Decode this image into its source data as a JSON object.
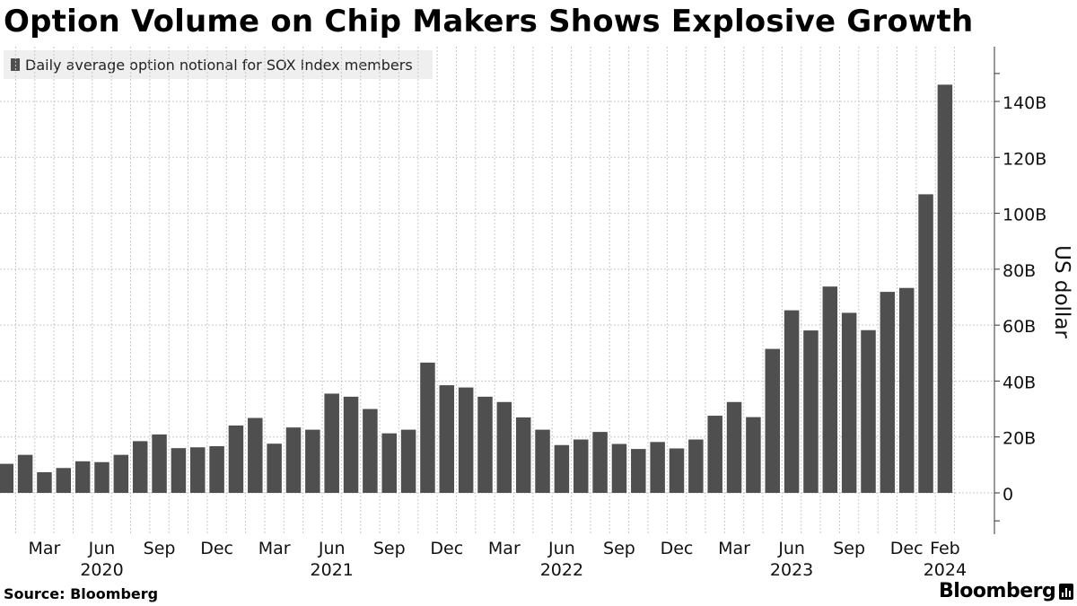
{
  "title": "Option Volume on Chip Makers Shows Explosive Growth",
  "legend": {
    "label": "Daily average option notional for SOX Index members",
    "color": "#4f4f4f"
  },
  "footer": {
    "source": "Source:  Bloomberg",
    "brand": "Bloomberg",
    "brand_icon": "bloomberg-terminal-icon"
  },
  "chart_data": {
    "type": "bar",
    "ylabel": "US dollar",
    "ylim": [
      -15,
      158
    ],
    "yticks": [
      0,
      20,
      40,
      60,
      80,
      100,
      120,
      140
    ],
    "ytick_labels": [
      "0",
      "20B",
      "40B",
      "60B",
      "80B",
      "100B",
      "120B",
      "140B"
    ],
    "grid": true,
    "legend_position": "top-left",
    "bar_color": "#4f4f4f",
    "series": [
      {
        "name": "Daily average option notional for SOX Index members",
        "categories": [
          "2020-01",
          "2020-02",
          "2020-03",
          "2020-04",
          "2020-05",
          "2020-06",
          "2020-07",
          "2020-08",
          "2020-09",
          "2020-10",
          "2020-11",
          "2020-12",
          "2021-01",
          "2021-02",
          "2021-03",
          "2021-04",
          "2021-05",
          "2021-06",
          "2021-07",
          "2021-08",
          "2021-09",
          "2021-10",
          "2021-11",
          "2021-12",
          "2022-01",
          "2022-02",
          "2022-03",
          "2022-04",
          "2022-05",
          "2022-06",
          "2022-07",
          "2022-08",
          "2022-09",
          "2022-10",
          "2022-11",
          "2022-12",
          "2023-01",
          "2023-02",
          "2023-03",
          "2023-04",
          "2023-05",
          "2023-06",
          "2023-07",
          "2023-08",
          "2023-09",
          "2023-10",
          "2023-11",
          "2023-12",
          "2024-01",
          "2024-02"
        ],
        "values": [
          10.4,
          13.6,
          7.4,
          8.9,
          11.3,
          11.0,
          13.6,
          18.5,
          20.9,
          16.0,
          16.3,
          16.7,
          24.1,
          26.8,
          17.6,
          23.4,
          22.6,
          35.5,
          34.4,
          30.0,
          21.3,
          22.6,
          46.6,
          38.5,
          37.7,
          34.4,
          32.5,
          27.0,
          22.6,
          17.1,
          19.1,
          21.8,
          17.5,
          15.7,
          18.2,
          15.9,
          19.1,
          27.6,
          32.5,
          27.1,
          51.5,
          65.3,
          58.1,
          73.8,
          64.4,
          58.2,
          71.9,
          73.3,
          106.8,
          146.0
        ]
      }
    ],
    "x_month_labels": [
      {
        "index": 2,
        "label": "Mar"
      },
      {
        "index": 5,
        "label": "Jun"
      },
      {
        "index": 8,
        "label": "Sep"
      },
      {
        "index": 11,
        "label": "Dec"
      },
      {
        "index": 14,
        "label": "Mar"
      },
      {
        "index": 17,
        "label": "Jun"
      },
      {
        "index": 20,
        "label": "Sep"
      },
      {
        "index": 23,
        "label": "Dec"
      },
      {
        "index": 26,
        "label": "Mar"
      },
      {
        "index": 29,
        "label": "Jun"
      },
      {
        "index": 32,
        "label": "Sep"
      },
      {
        "index": 35,
        "label": "Dec"
      },
      {
        "index": 38,
        "label": "Mar"
      },
      {
        "index": 41,
        "label": "Jun"
      },
      {
        "index": 44,
        "label": "Sep"
      },
      {
        "index": 47,
        "label": "Dec"
      },
      {
        "index": 49,
        "label": "Feb"
      }
    ],
    "x_year_labels": [
      {
        "index": 5,
        "label": "2020"
      },
      {
        "index": 17,
        "label": "2021"
      },
      {
        "index": 29,
        "label": "2022"
      },
      {
        "index": 41,
        "label": "2023"
      },
      {
        "index": 49,
        "label": "2024"
      }
    ]
  }
}
